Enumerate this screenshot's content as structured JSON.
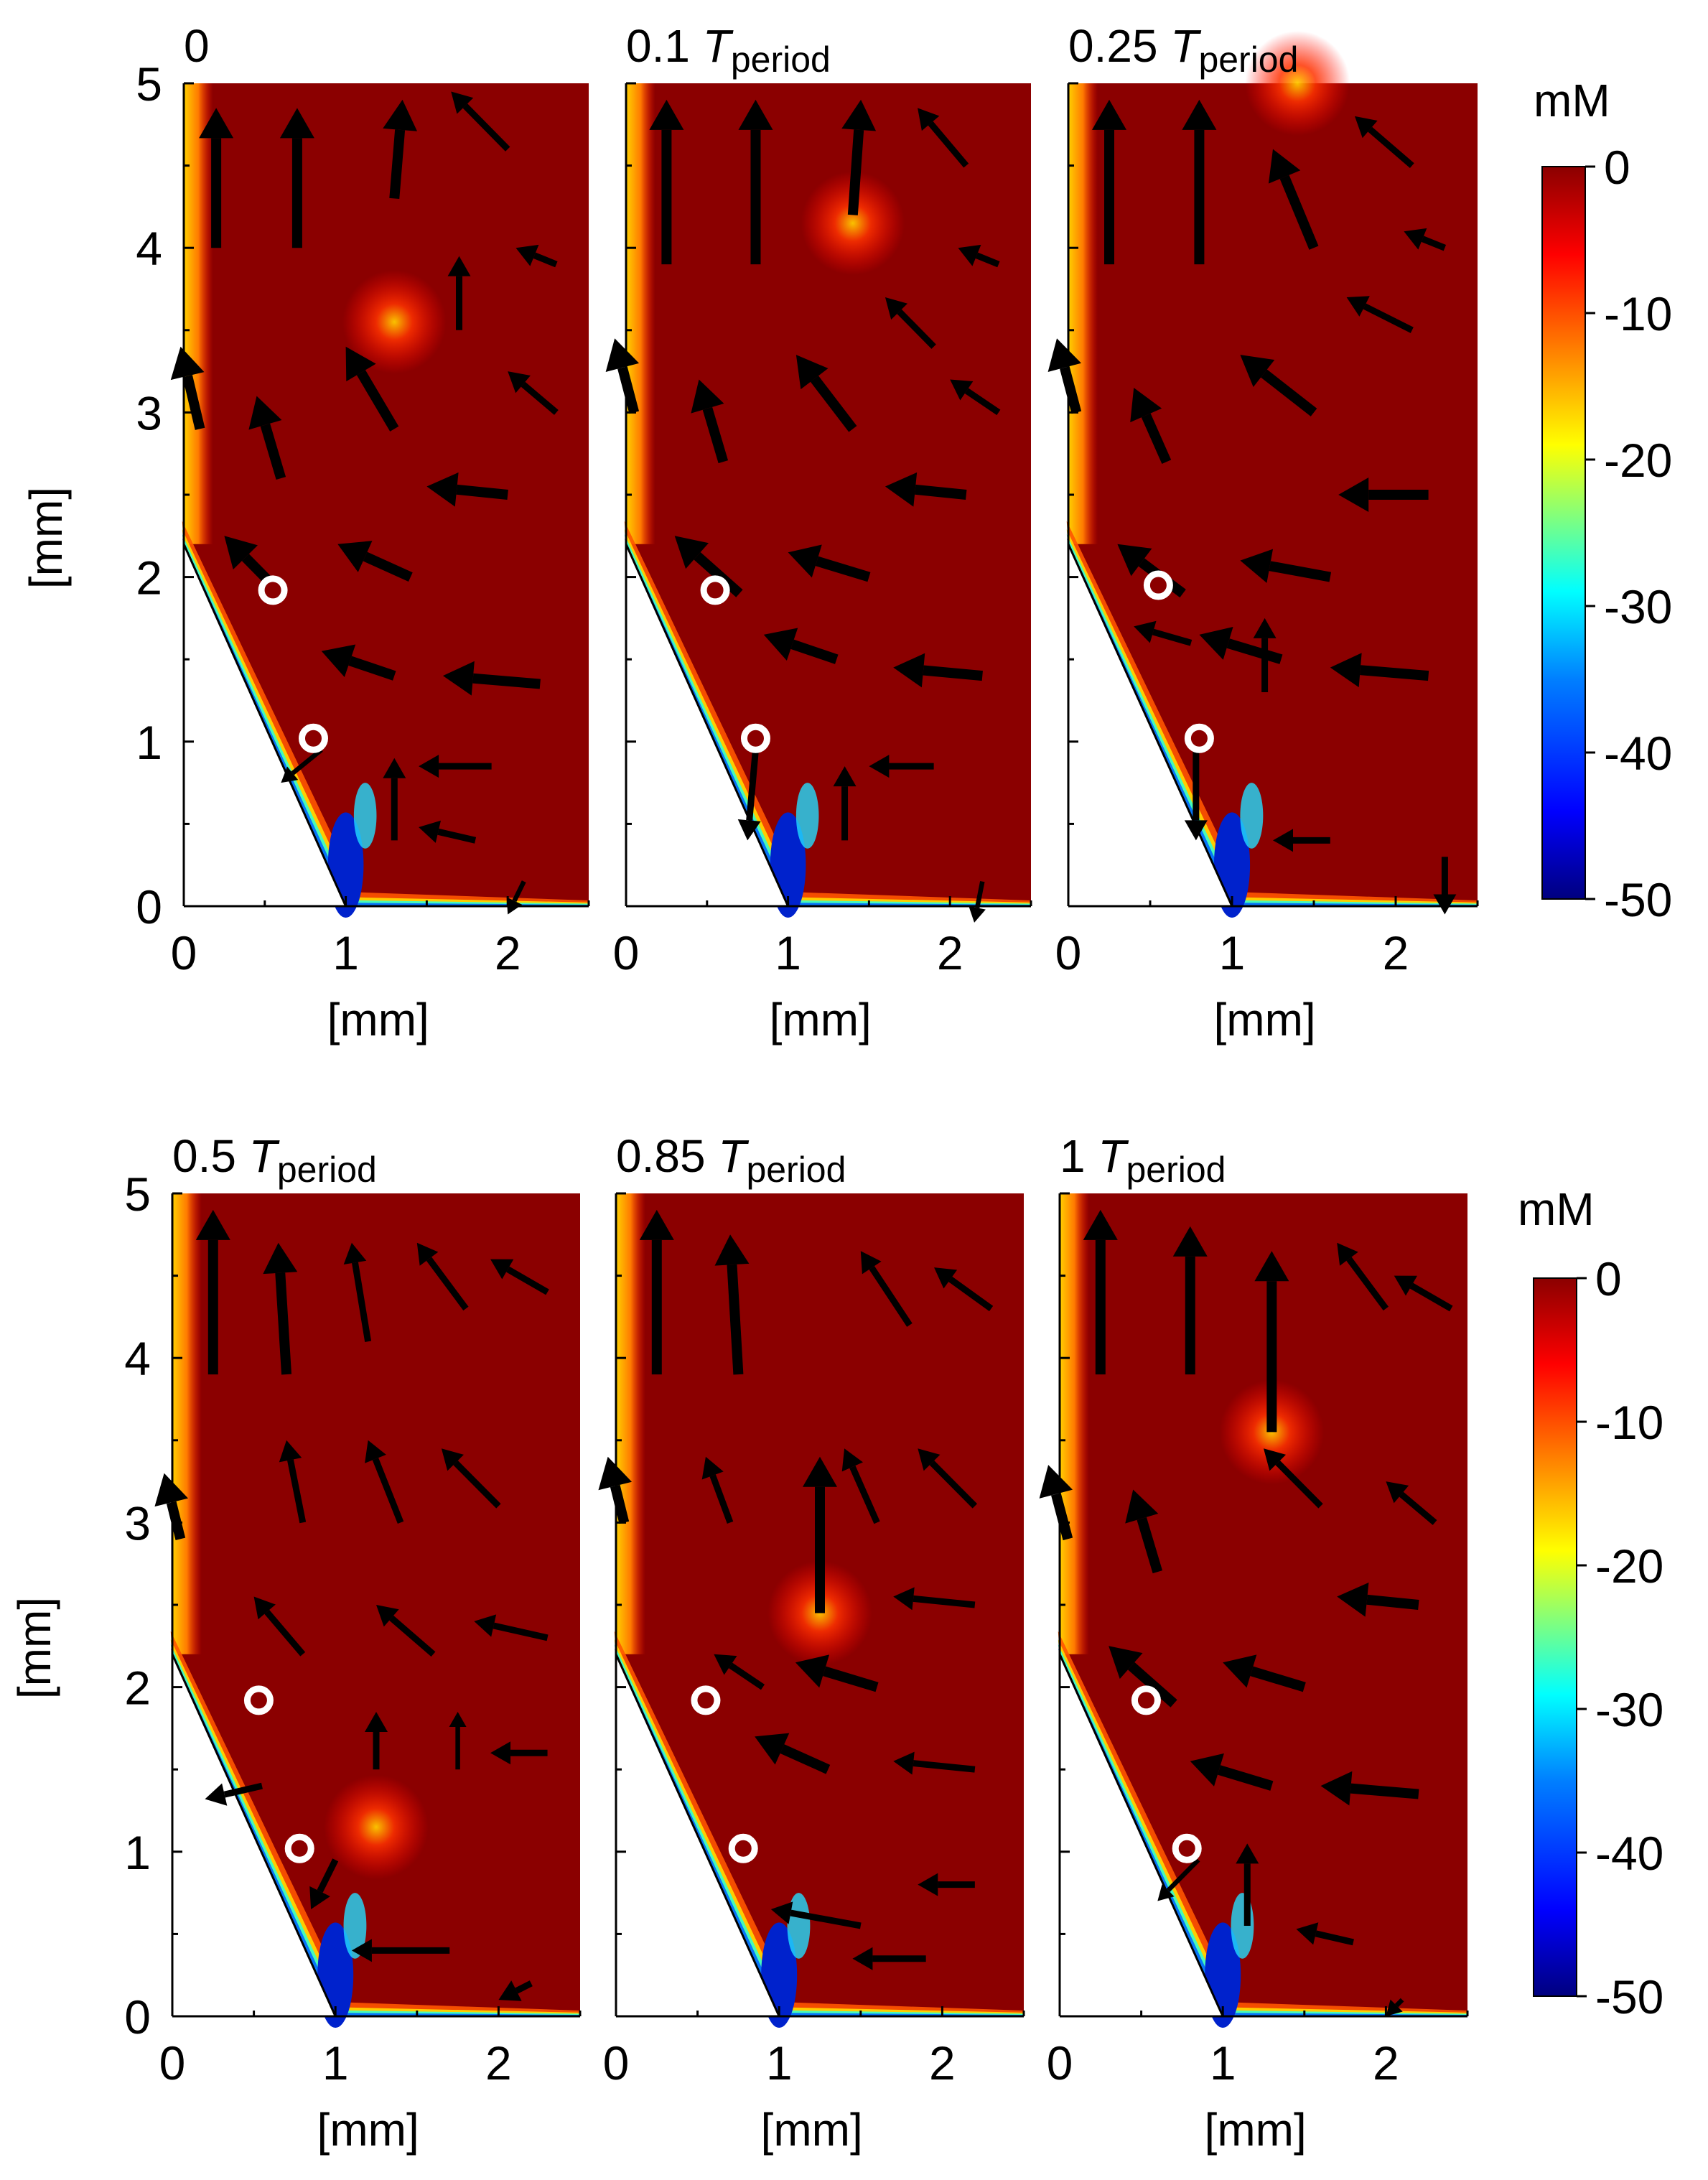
{
  "figure": {
    "description_free": true,
    "rows": 2,
    "cols": 3
  },
  "colorbar": {
    "unit": "mM",
    "min": -50,
    "max": 0,
    "ticks": [
      "0",
      "-10",
      "-20",
      "-30",
      "-40",
      "-50"
    ],
    "tick_values": [
      0,
      -10,
      -20,
      -30,
      -40,
      -50
    ],
    "colors": [
      "#00007f",
      "#0000ff",
      "#007fff",
      "#00ffff",
      "#7fff7f",
      "#ffff00",
      "#ff7f00",
      "#ff0000",
      "#8b0000"
    ]
  },
  "chart_data": [
    {
      "type": "heatmap",
      "panel_index": 0,
      "title_main": "0",
      "title_italic": "",
      "title_sub": "",
      "xlabel": "[mm]",
      "ylabel": "[mm]",
      "xlim": [
        0,
        2.5
      ],
      "ylim": [
        0,
        5
      ],
      "x_ticks": [
        0,
        1,
        2
      ],
      "y_ticks": [
        0,
        1,
        2,
        3,
        4,
        5
      ],
      "probe_points": [
        [
          0.55,
          1.92
        ],
        [
          0.8,
          1.02
        ]
      ],
      "hotspot": [
        1.3,
        3.55
      ],
      "quiver": [
        {
          "x": 0.2,
          "y": 4.0,
          "dx": 0.0,
          "dy": 0.85,
          "w": 2
        },
        {
          "x": 0.7,
          "y": 4.0,
          "dx": 0.0,
          "dy": 0.85,
          "w": 2
        },
        {
          "x": 1.3,
          "y": 4.3,
          "dx": 0.05,
          "dy": 0.6,
          "w": 2
        },
        {
          "x": 2.0,
          "y": 4.6,
          "dx": -0.35,
          "dy": 0.35,
          "w": 1
        },
        {
          "x": 0.1,
          "y": 2.9,
          "dx": -0.12,
          "dy": 0.5,
          "w": 2
        },
        {
          "x": 0.6,
          "y": 2.6,
          "dx": -0.15,
          "dy": 0.5,
          "w": 2
        },
        {
          "x": 1.3,
          "y": 2.9,
          "dx": -0.3,
          "dy": 0.5,
          "w": 2
        },
        {
          "x": 1.7,
          "y": 3.5,
          "dx": 0.0,
          "dy": 0.45,
          "w": 1
        },
        {
          "x": 2.3,
          "y": 3.9,
          "dx": -0.25,
          "dy": 0.1,
          "w": 1
        },
        {
          "x": 0.6,
          "y": 1.9,
          "dx": -0.35,
          "dy": 0.35,
          "w": 2
        },
        {
          "x": 1.4,
          "y": 2.0,
          "dx": -0.45,
          "dy": 0.2,
          "w": 2
        },
        {
          "x": 2.0,
          "y": 2.5,
          "dx": -0.5,
          "dy": 0.05,
          "w": 2
        },
        {
          "x": 2.3,
          "y": 3.0,
          "dx": -0.3,
          "dy": 0.25,
          "w": 1
        },
        {
          "x": 1.3,
          "y": 1.4,
          "dx": -0.45,
          "dy": 0.15,
          "w": 2
        },
        {
          "x": 2.2,
          "y": 1.35,
          "dx": -0.6,
          "dy": 0.05,
          "w": 2
        },
        {
          "x": 1.9,
          "y": 0.85,
          "dx": -0.45,
          "dy": 0.0,
          "w": 1
        },
        {
          "x": 1.3,
          "y": 0.4,
          "dx": 0.0,
          "dy": 0.5,
          "w": 1
        },
        {
          "x": 1.8,
          "y": 0.4,
          "dx": -0.35,
          "dy": 0.08,
          "w": 1
        },
        {
          "x": 0.85,
          "y": 0.95,
          "dx": -0.25,
          "dy": -0.2,
          "w": 0.5
        },
        {
          "x": 2.1,
          "y": 0.15,
          "dx": -0.1,
          "dy": -0.2,
          "w": 0.5
        }
      ]
    },
    {
      "type": "heatmap",
      "panel_index": 1,
      "title_main": "0.1 ",
      "title_italic": "T",
      "title_sub": "period",
      "xlabel": "[mm]",
      "ylabel": "",
      "xlim": [
        0,
        2.5
      ],
      "ylim": [
        0,
        5
      ],
      "x_ticks": [
        0,
        1,
        2
      ],
      "y_ticks": [
        0,
        1,
        2,
        3,
        4,
        5
      ],
      "probe_points": [
        [
          0.55,
          1.92
        ],
        [
          0.8,
          1.02
        ]
      ],
      "hotspot": [
        1.4,
        4.15
      ],
      "quiver": [
        {
          "x": 0.25,
          "y": 3.9,
          "dx": 0.0,
          "dy": 1.0,
          "w": 2
        },
        {
          "x": 0.8,
          "y": 3.9,
          "dx": 0.0,
          "dy": 1.0,
          "w": 2
        },
        {
          "x": 1.4,
          "y": 4.2,
          "dx": 0.05,
          "dy": 0.7,
          "w": 2
        },
        {
          "x": 2.1,
          "y": 4.5,
          "dx": -0.3,
          "dy": 0.35,
          "w": 1
        },
        {
          "x": 0.05,
          "y": 3.0,
          "dx": -0.12,
          "dy": 0.45,
          "w": 2
        },
        {
          "x": 0.6,
          "y": 2.7,
          "dx": -0.15,
          "dy": 0.5,
          "w": 2
        },
        {
          "x": 1.4,
          "y": 2.9,
          "dx": -0.35,
          "dy": 0.45,
          "w": 2
        },
        {
          "x": 1.9,
          "y": 3.4,
          "dx": -0.3,
          "dy": 0.3,
          "w": 1
        },
        {
          "x": 2.3,
          "y": 3.9,
          "dx": -0.25,
          "dy": 0.1,
          "w": 1
        },
        {
          "x": 0.7,
          "y": 1.9,
          "dx": -0.4,
          "dy": 0.35,
          "w": 2
        },
        {
          "x": 1.5,
          "y": 2.0,
          "dx": -0.5,
          "dy": 0.15,
          "w": 2
        },
        {
          "x": 2.1,
          "y": 2.5,
          "dx": -0.5,
          "dy": 0.05,
          "w": 2
        },
        {
          "x": 2.3,
          "y": 3.0,
          "dx": -0.3,
          "dy": 0.2,
          "w": 1
        },
        {
          "x": 1.3,
          "y": 1.5,
          "dx": -0.45,
          "dy": 0.15,
          "w": 2
        },
        {
          "x": 2.2,
          "y": 1.4,
          "dx": -0.55,
          "dy": 0.05,
          "w": 2
        },
        {
          "x": 1.9,
          "y": 0.85,
          "dx": -0.4,
          "dy": 0.0,
          "w": 1
        },
        {
          "x": 1.35,
          "y": 0.4,
          "dx": 0.0,
          "dy": 0.45,
          "w": 1
        },
        {
          "x": 0.8,
          "y": 0.95,
          "dx": -0.05,
          "dy": -0.55,
          "w": 1
        },
        {
          "x": 2.2,
          "y": 0.15,
          "dx": -0.05,
          "dy": -0.25,
          "w": 0.5
        }
      ]
    },
    {
      "type": "heatmap",
      "panel_index": 2,
      "title_main": "0.25 ",
      "title_italic": "T",
      "title_sub": "period",
      "xlabel": "[mm]",
      "ylabel": "",
      "xlim": [
        0,
        2.5
      ],
      "ylim": [
        0,
        5
      ],
      "x_ticks": [
        0,
        1,
        2
      ],
      "y_ticks": [
        0,
        1,
        2,
        3,
        4,
        5
      ],
      "probe_points": [
        [
          0.55,
          1.95
        ],
        [
          0.8,
          1.02
        ]
      ],
      "hotspot": [
        1.4,
        5.0
      ],
      "quiver": [
        {
          "x": 0.25,
          "y": 3.9,
          "dx": 0.0,
          "dy": 1.0,
          "w": 2
        },
        {
          "x": 0.8,
          "y": 3.9,
          "dx": 0.0,
          "dy": 1.0,
          "w": 2
        },
        {
          "x": 1.5,
          "y": 4.0,
          "dx": -0.25,
          "dy": 0.6,
          "w": 2
        },
        {
          "x": 2.1,
          "y": 4.5,
          "dx": -0.35,
          "dy": 0.3,
          "w": 1
        },
        {
          "x": 0.05,
          "y": 3.0,
          "dx": -0.12,
          "dy": 0.45,
          "w": 2
        },
        {
          "x": 0.6,
          "y": 2.7,
          "dx": -0.2,
          "dy": 0.45,
          "w": 2
        },
        {
          "x": 1.5,
          "y": 3.0,
          "dx": -0.45,
          "dy": 0.35,
          "w": 2
        },
        {
          "x": 2.1,
          "y": 3.5,
          "dx": -0.4,
          "dy": 0.2,
          "w": 1
        },
        {
          "x": 2.3,
          "y": 4.0,
          "dx": -0.25,
          "dy": 0.1,
          "w": 1
        },
        {
          "x": 0.7,
          "y": 1.9,
          "dx": -0.4,
          "dy": 0.3,
          "w": 2
        },
        {
          "x": 1.6,
          "y": 2.0,
          "dx": -0.55,
          "dy": 0.1,
          "w": 2
        },
        {
          "x": 2.2,
          "y": 2.5,
          "dx": -0.55,
          "dy": 0.0,
          "w": 2
        },
        {
          "x": 1.3,
          "y": 1.5,
          "dx": -0.5,
          "dy": 0.15,
          "w": 2
        },
        {
          "x": 2.2,
          "y": 1.4,
          "dx": -0.6,
          "dy": 0.05,
          "w": 2
        },
        {
          "x": 0.75,
          "y": 1.6,
          "dx": -0.35,
          "dy": 0.1,
          "w": 1
        },
        {
          "x": 1.2,
          "y": 1.3,
          "dx": 0.0,
          "dy": 0.45,
          "w": 1
        },
        {
          "x": 0.78,
          "y": 0.95,
          "dx": 0.0,
          "dy": -0.55,
          "w": 1
        },
        {
          "x": 1.6,
          "y": 0.4,
          "dx": -0.35,
          "dy": 0.0,
          "w": 1
        },
        {
          "x": 2.3,
          "y": 0.3,
          "dx": 0.0,
          "dy": -0.35,
          "w": 1
        }
      ]
    },
    {
      "type": "heatmap",
      "panel_index": 3,
      "title_main": "0.5 ",
      "title_italic": "T",
      "title_sub": "period",
      "xlabel": "[mm]",
      "ylabel": "[mm]",
      "xlim": [
        0,
        2.5
      ],
      "ylim": [
        0,
        5
      ],
      "x_ticks": [
        0,
        1,
        2
      ],
      "y_ticks": [
        0,
        1,
        2,
        3,
        4,
        5
      ],
      "probe_points": [
        [
          0.53,
          1.92
        ],
        [
          0.78,
          1.02
        ]
      ],
      "hotspot": [
        1.25,
        1.15
      ],
      "quiver": [
        {
          "x": 0.25,
          "y": 3.9,
          "dx": 0.0,
          "dy": 1.0,
          "w": 2
        },
        {
          "x": 0.7,
          "y": 3.9,
          "dx": -0.05,
          "dy": 0.8,
          "w": 2
        },
        {
          "x": 1.2,
          "y": 4.1,
          "dx": -0.1,
          "dy": 0.6,
          "w": 1
        },
        {
          "x": 1.8,
          "y": 4.3,
          "dx": -0.3,
          "dy": 0.4,
          "w": 1
        },
        {
          "x": 2.3,
          "y": 4.4,
          "dx": -0.35,
          "dy": 0.2,
          "w": 1
        },
        {
          "x": 0.05,
          "y": 2.9,
          "dx": -0.1,
          "dy": 0.4,
          "w": 2
        },
        {
          "x": 0.8,
          "y": 3.0,
          "dx": -0.1,
          "dy": 0.5,
          "w": 1
        },
        {
          "x": 1.4,
          "y": 3.0,
          "dx": -0.2,
          "dy": 0.5,
          "w": 1
        },
        {
          "x": 2.0,
          "y": 3.1,
          "dx": -0.35,
          "dy": 0.35,
          "w": 1
        },
        {
          "x": 0.8,
          "y": 2.2,
          "dx": -0.3,
          "dy": 0.35,
          "w": 1
        },
        {
          "x": 1.6,
          "y": 2.2,
          "dx": -0.35,
          "dy": 0.3,
          "w": 1
        },
        {
          "x": 2.3,
          "y": 2.3,
          "dx": -0.45,
          "dy": 0.1,
          "w": 1
        },
        {
          "x": 1.25,
          "y": 1.5,
          "dx": 0.0,
          "dy": 0.35,
          "w": 1
        },
        {
          "x": 1.75,
          "y": 1.5,
          "dx": 0.0,
          "dy": 0.35,
          "w": 0.5
        },
        {
          "x": 2.3,
          "y": 1.6,
          "dx": -0.35,
          "dy": 0.0,
          "w": 1
        },
        {
          "x": 0.55,
          "y": 1.4,
          "dx": -0.35,
          "dy": -0.08,
          "w": 1
        },
        {
          "x": 1.7,
          "y": 0.4,
          "dx": -0.6,
          "dy": 0.0,
          "w": 1
        },
        {
          "x": 1.0,
          "y": 0.95,
          "dx": -0.15,
          "dy": -0.3,
          "w": 1
        },
        {
          "x": 2.2,
          "y": 0.2,
          "dx": -0.2,
          "dy": -0.1,
          "w": 1
        }
      ]
    },
    {
      "type": "heatmap",
      "panel_index": 4,
      "title_main": "0.85 ",
      "title_italic": "T",
      "title_sub": "period",
      "xlabel": "[mm]",
      "ylabel": "",
      "xlim": [
        0,
        2.5
      ],
      "ylim": [
        0,
        5
      ],
      "x_ticks": [
        0,
        1,
        2
      ],
      "y_ticks": [
        0,
        1,
        2,
        3,
        4,
        5
      ],
      "probe_points": [
        [
          0.55,
          1.92
        ],
        [
          0.78,
          1.02
        ]
      ],
      "hotspot": [
        1.25,
        2.45
      ],
      "quiver": [
        {
          "x": 0.25,
          "y": 3.9,
          "dx": 0.0,
          "dy": 1.0,
          "w": 2
        },
        {
          "x": 0.75,
          "y": 3.9,
          "dx": -0.05,
          "dy": 0.85,
          "w": 2
        },
        {
          "x": 1.25,
          "y": 2.45,
          "dx": 0.0,
          "dy": 0.95,
          "w": 2
        },
        {
          "x": 1.8,
          "y": 4.2,
          "dx": -0.3,
          "dy": 0.45,
          "w": 1
        },
        {
          "x": 2.3,
          "y": 4.3,
          "dx": -0.35,
          "dy": 0.25,
          "w": 1
        },
        {
          "x": 0.05,
          "y": 3.0,
          "dx": -0.1,
          "dy": 0.4,
          "w": 2
        },
        {
          "x": 0.7,
          "y": 3.0,
          "dx": -0.15,
          "dy": 0.4,
          "w": 1
        },
        {
          "x": 1.6,
          "y": 3.0,
          "dx": -0.2,
          "dy": 0.45,
          "w": 1
        },
        {
          "x": 2.2,
          "y": 3.1,
          "dx": -0.35,
          "dy": 0.35,
          "w": 1
        },
        {
          "x": 0.9,
          "y": 2.0,
          "dx": -0.3,
          "dy": 0.2,
          "w": 1
        },
        {
          "x": 1.6,
          "y": 2.0,
          "dx": -0.5,
          "dy": 0.15,
          "w": 2
        },
        {
          "x": 2.2,
          "y": 2.5,
          "dx": -0.5,
          "dy": 0.05,
          "w": 1
        },
        {
          "x": 1.3,
          "y": 1.5,
          "dx": -0.45,
          "dy": 0.2,
          "w": 2
        },
        {
          "x": 2.2,
          "y": 1.5,
          "dx": -0.5,
          "dy": 0.05,
          "w": 1
        },
        {
          "x": 1.5,
          "y": 0.55,
          "dx": -0.55,
          "dy": 0.1,
          "w": 1
        },
        {
          "x": 2.2,
          "y": 0.8,
          "dx": -0.35,
          "dy": 0.0,
          "w": 1
        },
        {
          "x": 1.9,
          "y": 0.35,
          "dx": -0.45,
          "dy": 0.0,
          "w": 1
        }
      ]
    },
    {
      "type": "heatmap",
      "panel_index": 5,
      "title_main": "1 ",
      "title_italic": "T",
      "title_sub": "period",
      "xlabel": "[mm]",
      "ylabel": "",
      "xlim": [
        0,
        2.5
      ],
      "ylim": [
        0,
        5
      ],
      "x_ticks": [
        0,
        1,
        2
      ],
      "y_ticks": [
        0,
        1,
        2,
        3,
        4,
        5
      ],
      "colorbar_label": "mM",
      "probe_points": [
        [
          0.53,
          1.92
        ],
        [
          0.78,
          1.02
        ]
      ],
      "hotspot": [
        1.3,
        3.55
      ],
      "quiver": [
        {
          "x": 0.25,
          "y": 3.9,
          "dx": 0.0,
          "dy": 1.0,
          "w": 2
        },
        {
          "x": 0.8,
          "y": 3.9,
          "dx": 0.0,
          "dy": 0.9,
          "w": 2
        },
        {
          "x": 1.3,
          "y": 3.55,
          "dx": 0.0,
          "dy": 1.1,
          "w": 2
        },
        {
          "x": 2.0,
          "y": 4.3,
          "dx": -0.3,
          "dy": 0.4,
          "w": 1
        },
        {
          "x": 2.4,
          "y": 4.3,
          "dx": -0.35,
          "dy": 0.2,
          "w": 1
        },
        {
          "x": 0.05,
          "y": 2.9,
          "dx": -0.12,
          "dy": 0.45,
          "w": 2
        },
        {
          "x": 0.6,
          "y": 2.7,
          "dx": -0.15,
          "dy": 0.5,
          "w": 2
        },
        {
          "x": 1.6,
          "y": 3.1,
          "dx": -0.35,
          "dy": 0.35,
          "w": 1
        },
        {
          "x": 2.3,
          "y": 3.0,
          "dx": -0.3,
          "dy": 0.25,
          "w": 1
        },
        {
          "x": 0.7,
          "y": 1.9,
          "dx": -0.4,
          "dy": 0.35,
          "w": 2
        },
        {
          "x": 1.5,
          "y": 2.0,
          "dx": -0.5,
          "dy": 0.15,
          "w": 2
        },
        {
          "x": 2.2,
          "y": 2.5,
          "dx": -0.5,
          "dy": 0.05,
          "w": 2
        },
        {
          "x": 1.3,
          "y": 1.4,
          "dx": -0.5,
          "dy": 0.15,
          "w": 2
        },
        {
          "x": 2.2,
          "y": 1.35,
          "dx": -0.6,
          "dy": 0.05,
          "w": 2
        },
        {
          "x": 1.15,
          "y": 0.55,
          "dx": 0.0,
          "dy": 0.5,
          "w": 1
        },
        {
          "x": 1.8,
          "y": 0.45,
          "dx": -0.35,
          "dy": 0.08,
          "w": 1
        },
        {
          "x": 0.85,
          "y": 0.95,
          "dx": -0.25,
          "dy": -0.25,
          "w": 0.5
        },
        {
          "x": 2.1,
          "y": 0.1,
          "dx": -0.1,
          "dy": -0.1,
          "w": 0.5
        }
      ]
    }
  ]
}
